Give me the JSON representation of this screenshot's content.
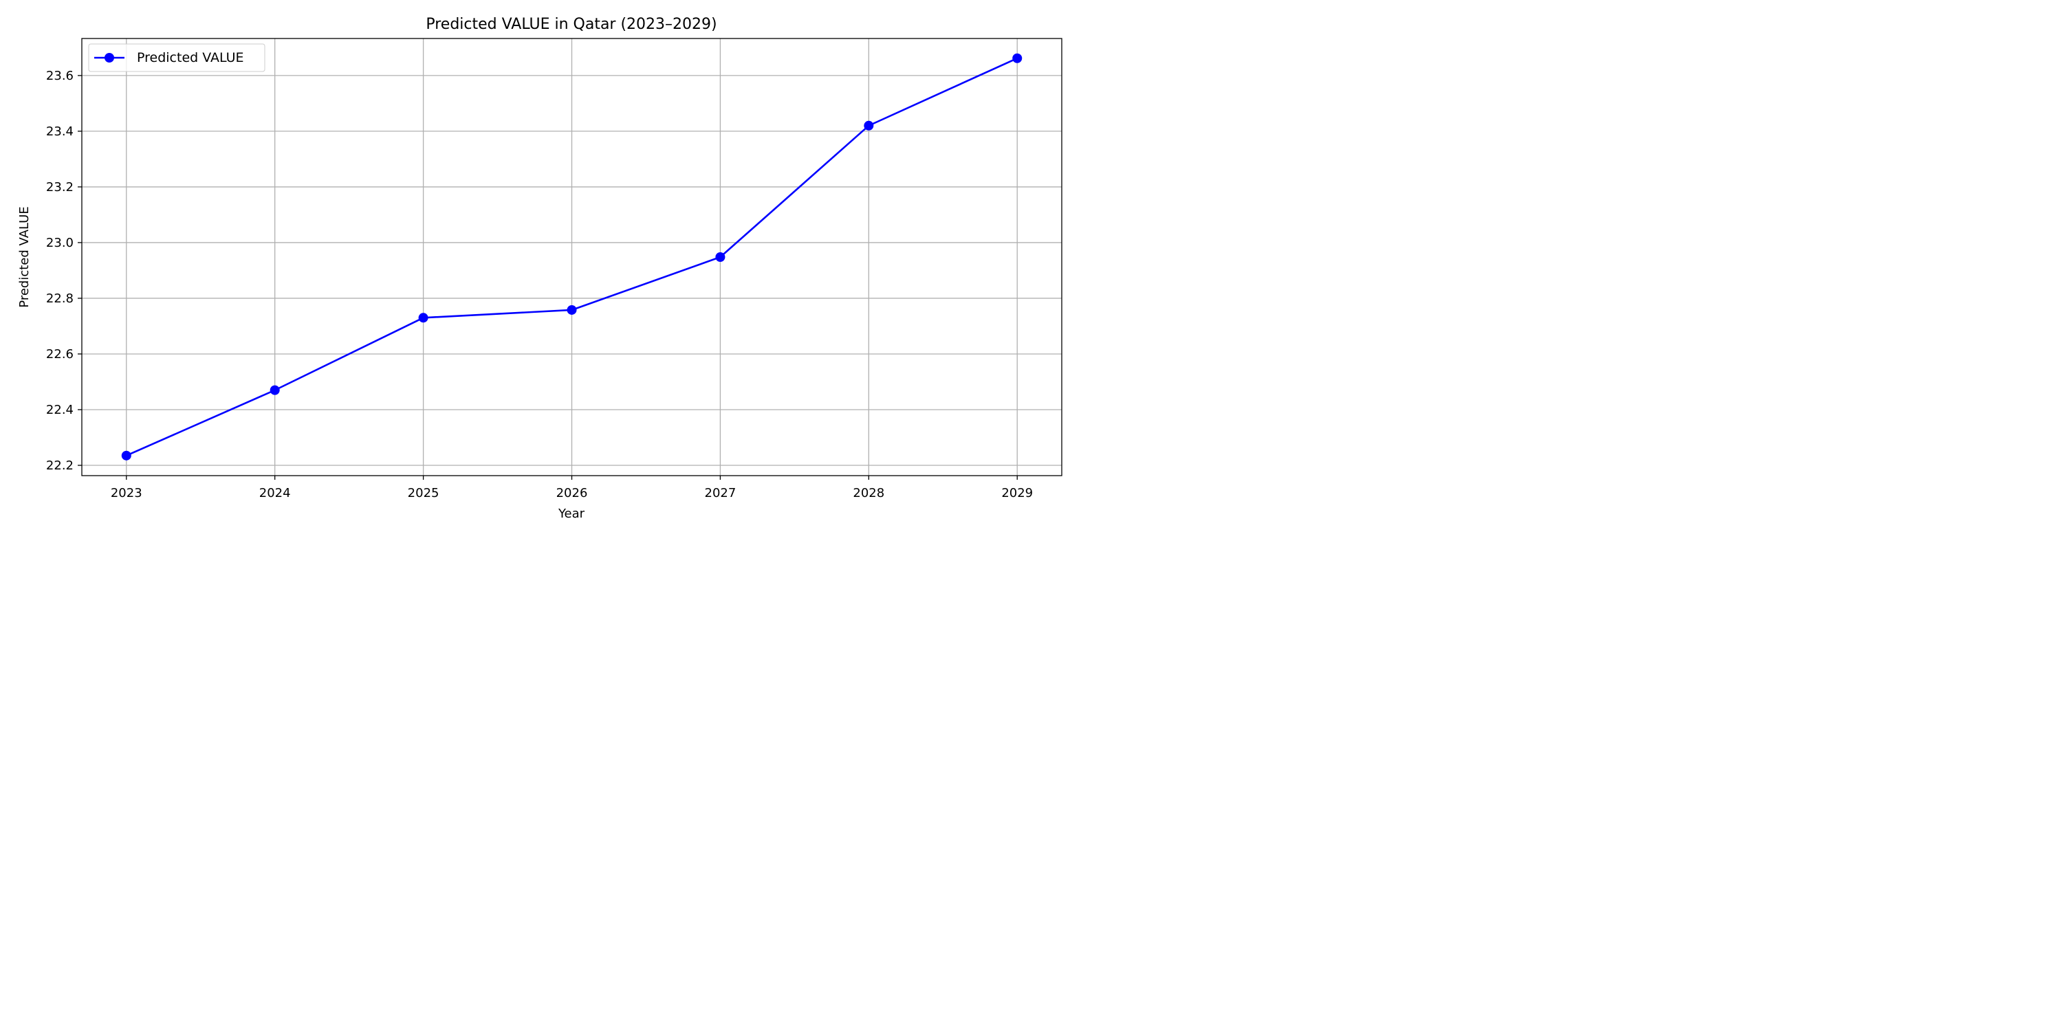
{
  "chart_data": {
    "type": "line",
    "title": "Predicted VALUE in Qatar (2023–2029)",
    "xlabel": "Year",
    "ylabel": "Predicted VALUE",
    "x": [
      2023,
      2024,
      2025,
      2026,
      2027,
      2028,
      2029
    ],
    "x_tick_labels": [
      "2023",
      "2024",
      "2025",
      "2026",
      "2027",
      "2028",
      "2029"
    ],
    "xlim": [
      2022.7,
      2029.3
    ],
    "y_ticks": [
      22.2,
      22.4,
      22.6,
      22.8,
      23.0,
      23.2,
      23.4,
      23.6
    ],
    "y_tick_labels": [
      "22.2",
      "22.4",
      "22.6",
      "22.8",
      "23.0",
      "23.2",
      "23.4",
      "23.6"
    ],
    "ylim": [
      22.163,
      23.733
    ],
    "grid": true,
    "legend_position": "top-left",
    "series": [
      {
        "name": "Predicted VALUE",
        "color": "#0000ff",
        "marker": "circle",
        "values": [
          22.235,
          22.47,
          22.73,
          22.758,
          22.948,
          23.42,
          23.662
        ]
      }
    ]
  }
}
